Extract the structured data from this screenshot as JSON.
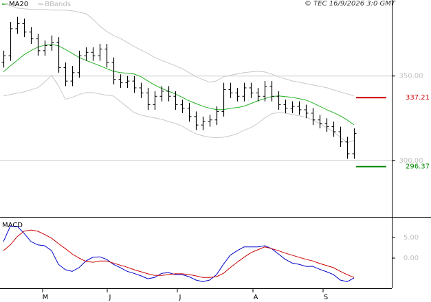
{
  "chart_data": [
    {
      "type": "ohlc",
      "annotation": "© TEC 16/9/2026 3:0 GMT",
      "ohlc": {
        "color": "#000000",
        "open": [
          358,
          362,
          378,
          381,
          376,
          372,
          365,
          368,
          370,
          355,
          347,
          352,
          362,
          364,
          362,
          366,
          358,
          348,
          346,
          347,
          343,
          340,
          333,
          338,
          341,
          338,
          333,
          331,
          326,
          321,
          323,
          324,
          329,
          342,
          340,
          338,
          343,
          340,
          338,
          344,
          338,
          333,
          331,
          332,
          330,
          328,
          324,
          322,
          320,
          317,
          311,
          304
        ],
        "high": [
          365,
          382,
          385,
          384,
          379,
          375,
          371,
          374,
          373,
          358,
          356,
          365,
          367,
          367,
          369,
          369,
          361,
          351,
          350,
          350,
          346,
          343,
          341,
          344,
          344,
          341,
          336,
          334,
          329,
          326,
          327,
          332,
          346,
          346,
          343,
          346,
          346,
          343,
          347,
          347,
          341,
          336,
          335,
          335,
          333,
          331,
          327,
          325,
          323,
          320,
          314,
          319
        ],
        "low": [
          355,
          359,
          375,
          373,
          369,
          362,
          362,
          365,
          352,
          344,
          344,
          349,
          359,
          359,
          359,
          355,
          345,
          343,
          343,
          340,
          337,
          330,
          330,
          335,
          335,
          330,
          328,
          323,
          318,
          318,
          320,
          321,
          326,
          337,
          335,
          335,
          337,
          335,
          335,
          335,
          330,
          328,
          328,
          327,
          325,
          321,
          319,
          317,
          314,
          308,
          301,
          301
        ],
        "close": [
          362,
          378,
          381,
          376,
          372,
          365,
          368,
          370,
          355,
          347,
          352,
          362,
          364,
          362,
          366,
          358,
          348,
          346,
          347,
          343,
          340,
          333,
          338,
          341,
          338,
          333,
          331,
          326,
          321,
          323,
          324,
          329,
          342,
          340,
          338,
          343,
          340,
          338,
          344,
          338,
          333,
          331,
          332,
          330,
          328,
          324,
          322,
          320,
          317,
          311,
          304,
          316
        ]
      },
      "overlays": [
        {
          "name": "MA20",
          "color": "#22b022",
          "values": [
            352.4,
            356,
            359.3,
            362.6,
            365,
            367.1,
            368.3,
            368.7,
            367.9,
            365.8,
            363.4,
            361,
            359.3,
            357.7,
            356.1,
            354.4,
            352.8,
            352,
            351.6,
            351.2,
            349.6,
            347.1,
            344.7,
            342.7,
            341,
            339.4,
            337.4,
            335.3,
            333.7,
            332.1,
            330.9,
            330.1,
            330.1,
            330.9,
            331.3,
            332.1,
            333.7,
            335.3,
            336.6,
            337.8,
            338.2,
            337.8,
            337.4,
            336.6,
            335.8,
            334.1,
            332.1,
            330.1,
            328.4,
            326.4,
            324,
            321.1
          ]
        },
        {
          "name": "BBands",
          "color": "#c8c8c8",
          "upper": [
            393,
            391.8,
            390.2,
            389.8,
            389.4,
            389.4,
            389.4,
            389,
            389,
            389,
            388.6,
            387.8,
            387,
            383.7,
            379.7,
            376.4,
            374,
            372.3,
            369.9,
            367.5,
            365.4,
            363.4,
            361,
            359.3,
            357.7,
            356.1,
            354.4,
            352,
            349.6,
            347.9,
            346.3,
            347.1,
            349.6,
            350.4,
            351.2,
            352,
            352.4,
            352.8,
            352.4,
            351.2,
            349.6,
            348.3,
            347.1,
            346.3,
            345.5,
            344.7,
            343.9,
            343.1,
            341.8,
            340.6,
            339.4,
            338.2
          ],
          "lower": [
            338.2,
            339,
            339.8,
            340.6,
            341.8,
            343.1,
            346.3,
            350.4,
            344.3,
            336.2,
            337.4,
            339,
            340.2,
            340.2,
            339.4,
            338.6,
            338.2,
            334.9,
            331.7,
            328.4,
            326.8,
            326,
            325.2,
            324.4,
            323.1,
            321.9,
            320.3,
            317.9,
            315.8,
            314.6,
            313.8,
            313.4,
            313.8,
            314.6,
            315.8,
            317.9,
            319.5,
            321.9,
            325.2,
            327.6,
            328.4,
            328,
            327.2,
            326.4,
            325.6,
            324,
            321.9,
            319.5,
            317,
            313.8,
            310.5,
            311.8
          ]
        }
      ],
      "levels": [
        {
          "value": 337.21,
          "color": "#cc0000"
        },
        {
          "value": 296.37,
          "color": "#008800"
        }
      ],
      "xlim": [
        -0.5,
        56.5
      ],
      "ylim": [
        267,
        395
      ],
      "yticks": [
        {
          "value": 350,
          "label": "350.00"
        },
        {
          "value": 300,
          "label": "300.00"
        }
      ],
      "grid": true
    },
    {
      "type": "line",
      "title": "MACD",
      "series": [
        {
          "name": "MACD",
          "color": "#0000cc",
          "values": [
            4,
            7.7,
            7.7,
            6,
            4,
            3.2,
            3,
            1.8,
            -1.5,
            -2.8,
            -3.2,
            -2.3,
            -0.7,
            0.2,
            0.3,
            -0.3,
            -1.5,
            -2.3,
            -3.2,
            -3.7,
            -4.3,
            -5,
            -4.7,
            -3.7,
            -3.5,
            -4,
            -4,
            -4.5,
            -5.3,
            -5.7,
            -5.3,
            -4,
            -1.5,
            0.7,
            1.8,
            2.7,
            2.7,
            2.7,
            3,
            2.3,
            1,
            -0.3,
            -1.2,
            -1.5,
            -2,
            -2,
            -2.7,
            -3.3,
            -4,
            -5.3,
            -5.7,
            -4.8
          ]
        },
        {
          "color": "#cc0000",
          "values": [
            1.8,
            3.2,
            5.2,
            6.5,
            6.8,
            6.5,
            5.7,
            4.8,
            3.5,
            2.3,
            1,
            0,
            -0.8,
            -1,
            -0.7,
            -0.7,
            -1.2,
            -1.7,
            -2.2,
            -2.8,
            -3.3,
            -3.8,
            -4.2,
            -4.2,
            -4,
            -3.8,
            -3.8,
            -4,
            -4.3,
            -4.7,
            -4.7,
            -4.5,
            -3.7,
            -2.3,
            -1,
            0.2,
            1.3,
            2,
            2.7,
            2.3,
            1.8,
            1.2,
            0.7,
            0.2,
            -0.3,
            -0.7,
            -1.3,
            -1.8,
            -2.3,
            -3.2,
            -4,
            -4.7
          ]
        }
      ],
      "xlim": [
        -0.5,
        56.5
      ],
      "xticks": [
        {
          "value": 5.7,
          "label": "M"
        },
        {
          "value": 15.1,
          "label": "J"
        },
        {
          "value": 25.3,
          "label": "J"
        },
        {
          "value": 36.3,
          "label": "A"
        },
        {
          "value": 46.5,
          "label": "S"
        }
      ],
      "ylim": [
        -7.3,
        9.8
      ],
      "yticks": [
        {
          "value": 5,
          "label": "5.00"
        },
        {
          "value": 0,
          "label": "0.00"
        }
      ]
    }
  ]
}
